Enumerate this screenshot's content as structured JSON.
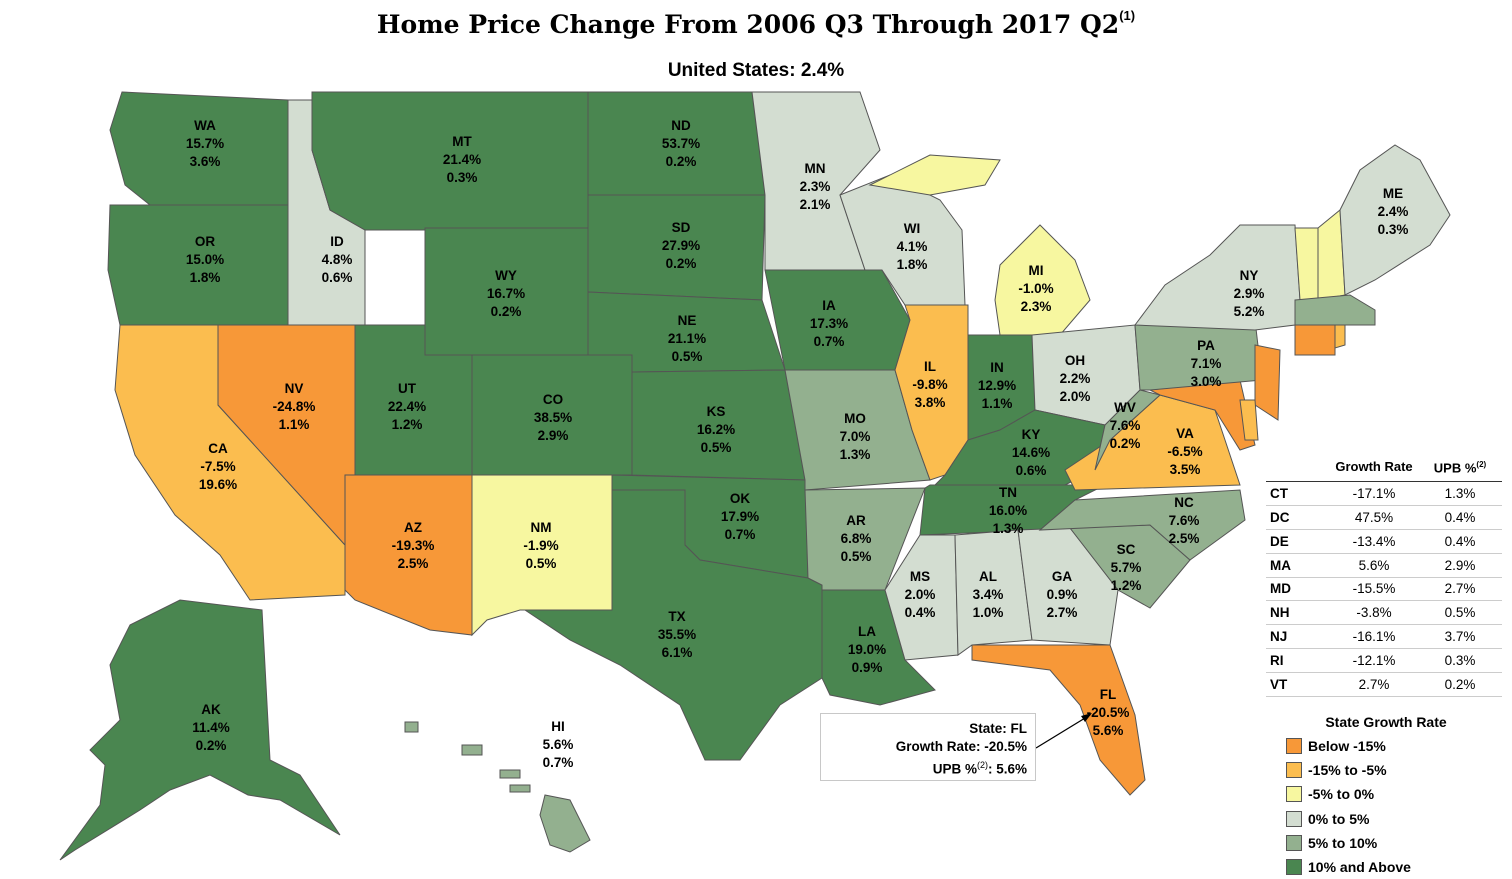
{
  "title": "Home Price Change From 2006 Q3 Through 2017 Q2",
  "title_footnote": "(1)",
  "subtitle": "United States: 2.4%",
  "colors": {
    "below_-15": "#f79838",
    "-15_to_-5": "#fbbd4f",
    "-5_to_0": "#f7f7a0",
    "0_to_5": "#d3ddd1",
    "5_to_10": "#93b08f",
    "10_and_above": "#4a8650"
  },
  "states": [
    {
      "code": "WA",
      "growth": "15.7%",
      "upb": "3.6%",
      "cat": "10_and_above"
    },
    {
      "code": "OR",
      "growth": "15.0%",
      "upb": "1.8%",
      "cat": "10_and_above"
    },
    {
      "code": "CA",
      "growth": "-7.5%",
      "upb": "19.6%",
      "cat": "-15_to_-5"
    },
    {
      "code": "ID",
      "growth": "4.8%",
      "upb": "0.6%",
      "cat": "0_to_5"
    },
    {
      "code": "NV",
      "growth": "-24.8%",
      "upb": "1.1%",
      "cat": "below_-15"
    },
    {
      "code": "MT",
      "growth": "21.4%",
      "upb": "0.3%",
      "cat": "10_and_above"
    },
    {
      "code": "WY",
      "growth": "16.7%",
      "upb": "0.2%",
      "cat": "10_and_above"
    },
    {
      "code": "UT",
      "growth": "22.4%",
      "upb": "1.2%",
      "cat": "10_and_above"
    },
    {
      "code": "AZ",
      "growth": "-19.3%",
      "upb": "2.5%",
      "cat": "below_-15"
    },
    {
      "code": "CO",
      "growth": "38.5%",
      "upb": "2.9%",
      "cat": "10_and_above"
    },
    {
      "code": "NM",
      "growth": "-1.9%",
      "upb": "0.5%",
      "cat": "-5_to_0"
    },
    {
      "code": "ND",
      "growth": "53.7%",
      "upb": "0.2%",
      "cat": "10_and_above"
    },
    {
      "code": "SD",
      "growth": "27.9%",
      "upb": "0.2%",
      "cat": "10_and_above"
    },
    {
      "code": "NE",
      "growth": "21.1%",
      "upb": "0.5%",
      "cat": "10_and_above"
    },
    {
      "code": "KS",
      "growth": "16.2%",
      "upb": "0.5%",
      "cat": "10_and_above"
    },
    {
      "code": "OK",
      "growth": "17.9%",
      "upb": "0.7%",
      "cat": "10_and_above"
    },
    {
      "code": "TX",
      "growth": "35.5%",
      "upb": "6.1%",
      "cat": "10_and_above"
    },
    {
      "code": "MN",
      "growth": "2.3%",
      "upb": "2.1%",
      "cat": "0_to_5"
    },
    {
      "code": "IA",
      "growth": "17.3%",
      "upb": "0.7%",
      "cat": "10_and_above"
    },
    {
      "code": "MO",
      "growth": "7.0%",
      "upb": "1.3%",
      "cat": "5_to_10"
    },
    {
      "code": "AR",
      "growth": "6.8%",
      "upb": "0.5%",
      "cat": "5_to_10"
    },
    {
      "code": "LA",
      "growth": "19.0%",
      "upb": "0.9%",
      "cat": "10_and_above"
    },
    {
      "code": "WI",
      "growth": "4.1%",
      "upb": "1.8%",
      "cat": "0_to_5"
    },
    {
      "code": "IL",
      "growth": "-9.8%",
      "upb": "3.8%",
      "cat": "-15_to_-5"
    },
    {
      "code": "MI",
      "growth": "-1.0%",
      "upb": "2.3%",
      "cat": "-5_to_0"
    },
    {
      "code": "IN",
      "growth": "12.9%",
      "upb": "1.1%",
      "cat": "10_and_above"
    },
    {
      "code": "OH",
      "growth": "2.2%",
      "upb": "2.0%",
      "cat": "0_to_5"
    },
    {
      "code": "KY",
      "growth": "14.6%",
      "upb": "0.6%",
      "cat": "10_and_above"
    },
    {
      "code": "TN",
      "growth": "16.0%",
      "upb": "1.3%",
      "cat": "10_and_above"
    },
    {
      "code": "MS",
      "growth": "2.0%",
      "upb": "0.4%",
      "cat": "0_to_5"
    },
    {
      "code": "AL",
      "growth": "3.4%",
      "upb": "1.0%",
      "cat": "0_to_5"
    },
    {
      "code": "GA",
      "growth": "0.9%",
      "upb": "2.7%",
      "cat": "0_to_5"
    },
    {
      "code": "FL",
      "growth": "-20.5%",
      "upb": "5.6%",
      "cat": "below_-15"
    },
    {
      "code": "SC",
      "growth": "5.7%",
      "upb": "1.2%",
      "cat": "5_to_10"
    },
    {
      "code": "NC",
      "growth": "7.6%",
      "upb": "2.5%",
      "cat": "5_to_10"
    },
    {
      "code": "VA",
      "growth": "-6.5%",
      "upb": "3.5%",
      "cat": "-15_to_-5"
    },
    {
      "code": "WV",
      "growth": "7.6%",
      "upb": "0.2%",
      "cat": "5_to_10"
    },
    {
      "code": "PA",
      "growth": "7.1%",
      "upb": "3.0%",
      "cat": "5_to_10"
    },
    {
      "code": "NY",
      "growth": "2.9%",
      "upb": "5.2%",
      "cat": "0_to_5"
    },
    {
      "code": "ME",
      "growth": "2.4%",
      "upb": "0.3%",
      "cat": "0_to_5"
    },
    {
      "code": "AK",
      "growth": "11.4%",
      "upb": "0.2%",
      "cat": "10_and_above"
    },
    {
      "code": "HI",
      "growth": "5.6%",
      "upb": "0.7%",
      "cat": "5_to_10"
    }
  ],
  "callout": {
    "state_line": "State: FL",
    "growth_line": "Growth Rate: -20.5%",
    "upb_label": "UPB %",
    "upb_footnote": "(2)",
    "upb_value": ": 5.6%"
  },
  "table": {
    "header_growth": "Growth Rate",
    "header_upb": "UPB %",
    "header_upb_footnote": "(2)",
    "rows": [
      {
        "state": "CT",
        "growth": "-17.1%",
        "upb": "1.3%"
      },
      {
        "state": "DC",
        "growth": "47.5%",
        "upb": "0.4%"
      },
      {
        "state": "DE",
        "growth": "-13.4%",
        "upb": "0.4%"
      },
      {
        "state": "MA",
        "growth": "5.6%",
        "upb": "2.9%"
      },
      {
        "state": "MD",
        "growth": "-15.5%",
        "upb": "2.7%"
      },
      {
        "state": "NH",
        "growth": "-3.8%",
        "upb": "0.5%"
      },
      {
        "state": "NJ",
        "growth": "-16.1%",
        "upb": "3.7%"
      },
      {
        "state": "RI",
        "growth": "-12.1%",
        "upb": "0.3%"
      },
      {
        "state": "VT",
        "growth": "2.7%",
        "upb": "0.2%"
      }
    ]
  },
  "legend": {
    "title": "State Growth Rate",
    "items": [
      {
        "label": "Below -15%",
        "color": "#f79838"
      },
      {
        "label": "-15% to -5%",
        "color": "#fbbd4f"
      },
      {
        "label": "-5% to 0%",
        "color": "#f7f7a0"
      },
      {
        "label": "0% to 5%",
        "color": "#d3ddd1"
      },
      {
        "label": "5% to 10%",
        "color": "#93b08f"
      },
      {
        "label": "10% and Above",
        "color": "#4a8650"
      }
    ]
  }
}
